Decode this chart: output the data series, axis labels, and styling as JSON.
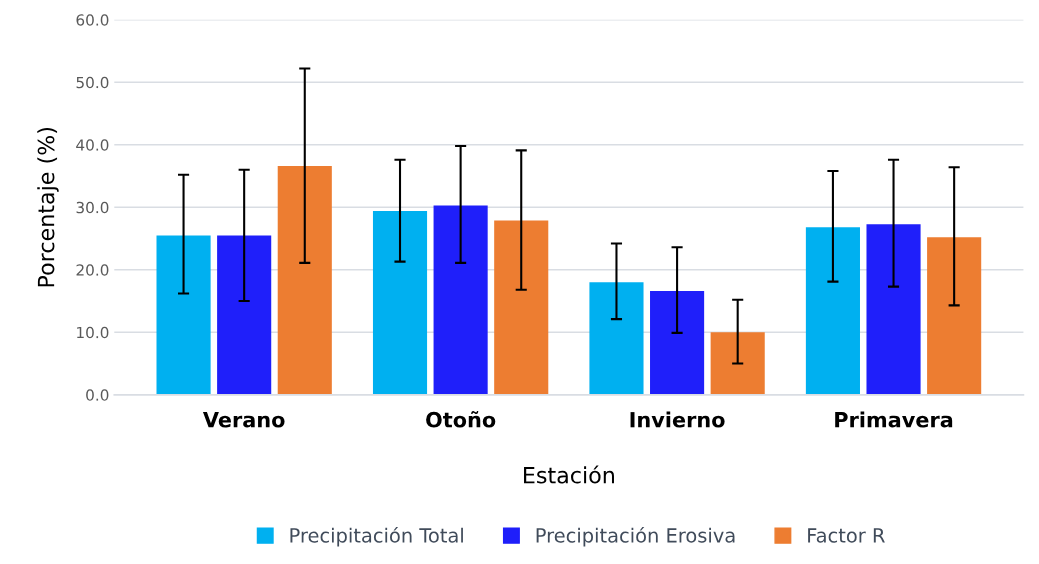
{
  "chart_data": {
    "type": "bar",
    "xlabel": "Estación",
    "ylabel": "Porcentaje (%)",
    "categories": [
      "Verano",
      "Otoño",
      "Invierno",
      "Primavera"
    ],
    "series": [
      {
        "name": "Precipitación Total",
        "color": "#00b0f0",
        "values": [
          25.5,
          29.4,
          18.0,
          26.8
        ],
        "errors": [
          [
            16.2,
            35.2
          ],
          [
            21.3,
            37.6
          ],
          [
            12.1,
            24.2
          ],
          [
            18.1,
            35.8
          ]
        ]
      },
      {
        "name": "Precipitación Erosiva",
        "color": "#1f1ffa",
        "values": [
          25.5,
          30.3,
          16.6,
          27.3
        ],
        "errors": [
          [
            15.0,
            36.0
          ],
          [
            21.1,
            39.8
          ],
          [
            9.9,
            23.6
          ],
          [
            17.3,
            37.6
          ]
        ]
      },
      {
        "name": "Factor R",
        "color": "#ed7d31",
        "values": [
          36.6,
          27.9,
          10.0,
          25.2
        ],
        "errors": [
          [
            21.1,
            52.2
          ],
          [
            16.8,
            39.1
          ],
          [
            5.0,
            15.2
          ],
          [
            14.3,
            36.4
          ]
        ]
      }
    ],
    "ylim": [
      0,
      60
    ],
    "yticks": [
      {
        "value": 0,
        "label": "0.0"
      },
      {
        "value": 10,
        "label": "10.0"
      },
      {
        "value": 20,
        "label": "20.0"
      },
      {
        "value": 30,
        "label": "30.0"
      },
      {
        "value": 40,
        "label": "40.0"
      },
      {
        "value": 50,
        "label": "50.0"
      },
      {
        "value": 60,
        "label": "60.0"
      }
    ],
    "grid": "y",
    "legend": "bottom"
  }
}
